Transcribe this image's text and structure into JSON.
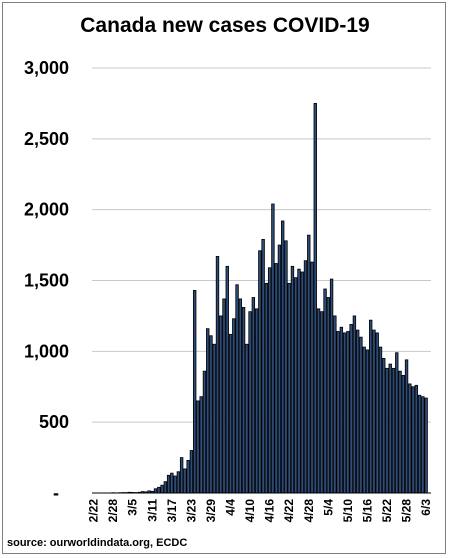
{
  "chart_data": {
    "type": "bar",
    "title": "Canada new cases COVID-19",
    "source": "source: ourworldindata.org, ECDC",
    "xlabel": "",
    "ylabel": "",
    "ylim": [
      0,
      3000
    ],
    "y_ticks": [
      0,
      500,
      1000,
      1500,
      2000,
      2500,
      3000
    ],
    "y_tick_labels": [
      "-",
      "500",
      "1,000",
      "1,500",
      "2,000",
      "2,500",
      "3,000"
    ],
    "grid": true,
    "bar_color": "#203864",
    "bar_fill": "#2e4d7b",
    "x_tick_labels": [
      "2/22",
      "2/28",
      "3/5",
      "3/11",
      "3/17",
      "3/23",
      "3/29",
      "4/4",
      "4/10",
      "4/16",
      "4/22",
      "4/28",
      "5/4",
      "5/10",
      "5/16",
      "5/22",
      "5/28",
      "6/3"
    ],
    "categories": [
      "2/22",
      "2/23",
      "2/24",
      "2/25",
      "2/26",
      "2/27",
      "2/28",
      "2/29",
      "3/1",
      "3/2",
      "3/3",
      "3/4",
      "3/5",
      "3/6",
      "3/7",
      "3/8",
      "3/9",
      "3/10",
      "3/11",
      "3/12",
      "3/13",
      "3/14",
      "3/15",
      "3/16",
      "3/17",
      "3/18",
      "3/19",
      "3/20",
      "3/21",
      "3/22",
      "3/23",
      "3/24",
      "3/25",
      "3/26",
      "3/27",
      "3/28",
      "3/29",
      "3/30",
      "3/31",
      "4/1",
      "4/2",
      "4/3",
      "4/4",
      "4/5",
      "4/6",
      "4/7",
      "4/8",
      "4/9",
      "4/10",
      "4/11",
      "4/12",
      "4/13",
      "4/14",
      "4/15",
      "4/16",
      "4/17",
      "4/18",
      "4/19",
      "4/20",
      "4/21",
      "4/22",
      "4/23",
      "4/24",
      "4/25",
      "4/26",
      "4/27",
      "4/28",
      "4/29",
      "4/30",
      "5/1",
      "5/2",
      "5/3",
      "5/4",
      "5/5",
      "5/6",
      "5/7",
      "5/8",
      "5/9",
      "5/10",
      "5/11",
      "5/12",
      "5/13",
      "5/14",
      "5/15",
      "5/16",
      "5/17",
      "5/18",
      "5/19",
      "5/20",
      "5/21",
      "5/22",
      "5/23",
      "5/24",
      "5/25",
      "5/26",
      "5/27",
      "5/28",
      "5/29",
      "5/30",
      "5/31",
      "6/1",
      "6/2",
      "6/3",
      "6/4"
    ],
    "values": [
      0,
      0,
      0,
      0,
      0,
      0,
      2,
      1,
      2,
      3,
      3,
      5,
      4,
      3,
      5,
      10,
      8,
      15,
      12,
      30,
      40,
      55,
      80,
      125,
      140,
      120,
      150,
      250,
      170,
      230,
      300,
      1430,
      650,
      680,
      860,
      1160,
      1110,
      1050,
      1670,
      1250,
      1370,
      1600,
      1120,
      1230,
      1470,
      1370,
      1310,
      1050,
      1280,
      1380,
      1300,
      1710,
      1790,
      1480,
      1590,
      2040,
      1620,
      1750,
      1920,
      1780,
      1480,
      1600,
      1520,
      1580,
      1560,
      1640,
      1820,
      1630,
      2750,
      1300,
      1280,
      1440,
      1380,
      1510,
      1250,
      1140,
      1170,
      1130,
      1140,
      1190,
      1250,
      1150,
      1100,
      1030,
      1010,
      1220,
      1150,
      1130,
      1030,
      950,
      880,
      910,
      880,
      990,
      860,
      830,
      940,
      770,
      750,
      760,
      690,
      680,
      670,
      0
    ]
  }
}
